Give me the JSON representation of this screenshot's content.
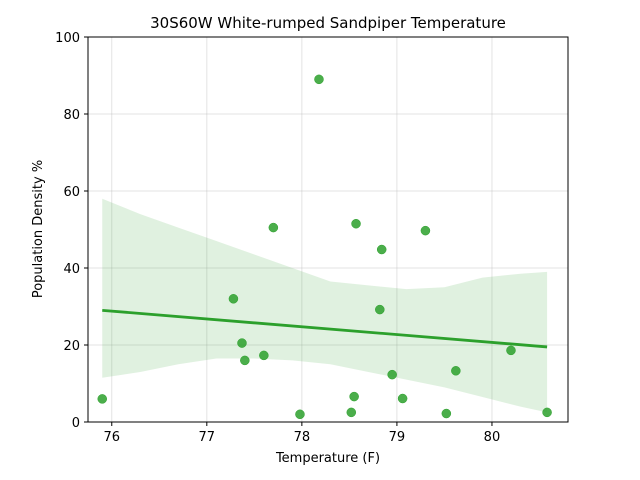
{
  "chart_data": {
    "type": "scatter",
    "title": "30S60W White-rumped Sandpiper Temperature",
    "xlabel": "Temperature (F)",
    "ylabel": "Population Density %",
    "xlim": [
      75.75,
      80.8
    ],
    "ylim": [
      0,
      100
    ],
    "xticks": [
      76,
      77,
      78,
      79,
      80
    ],
    "yticks": [
      0,
      20,
      40,
      60,
      80,
      100
    ],
    "grid": true,
    "points": [
      {
        "x": 75.9,
        "y": 6
      },
      {
        "x": 77.28,
        "y": 32
      },
      {
        "x": 77.37,
        "y": 20.5
      },
      {
        "x": 77.4,
        "y": 16
      },
      {
        "x": 77.6,
        "y": 17.3
      },
      {
        "x": 77.7,
        "y": 50.5
      },
      {
        "x": 77.98,
        "y": 2
      },
      {
        "x": 78.18,
        "y": 89
      },
      {
        "x": 78.52,
        "y": 2.5
      },
      {
        "x": 78.55,
        "y": 6.6
      },
      {
        "x": 78.57,
        "y": 51.5
      },
      {
        "x": 78.82,
        "y": 29.2
      },
      {
        "x": 78.84,
        "y": 44.8
      },
      {
        "x": 78.95,
        "y": 12.3
      },
      {
        "x": 79.06,
        "y": 6.1
      },
      {
        "x": 79.3,
        "y": 49.7
      },
      {
        "x": 79.52,
        "y": 2.2
      },
      {
        "x": 79.62,
        "y": 13.3
      },
      {
        "x": 80.2,
        "y": 18.6
      },
      {
        "x": 80.58,
        "y": 2.5
      }
    ],
    "regression": {
      "x": [
        75.9,
        80.58
      ],
      "y": [
        29,
        19.5
      ]
    },
    "confidence_band": {
      "x": [
        75.9,
        76.3,
        76.7,
        77.1,
        77.5,
        77.9,
        78.3,
        78.7,
        79.1,
        79.5,
        79.9,
        80.3,
        80.58
      ],
      "upper": [
        58,
        54,
        50.5,
        47,
        43.5,
        40,
        36.5,
        35.5,
        34.5,
        35,
        37.5,
        38.5,
        39
      ],
      "lower": [
        11.5,
        13,
        15,
        16.5,
        16.5,
        16,
        15,
        13,
        11,
        9,
        6.5,
        4,
        2.5
      ]
    },
    "colors": {
      "points": "#2ca02c",
      "line": "#2ca02c",
      "band": "#2ca02c"
    }
  }
}
